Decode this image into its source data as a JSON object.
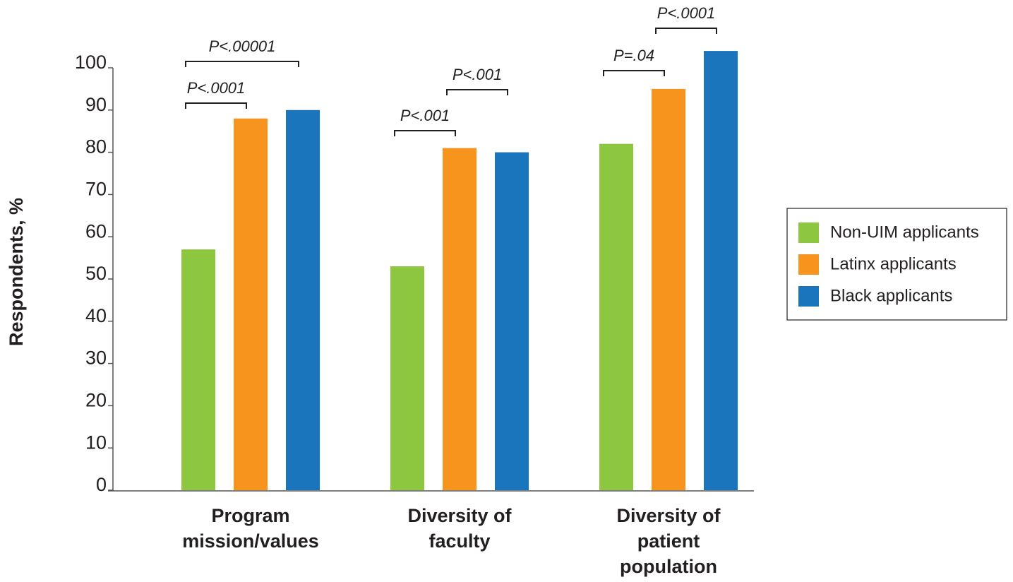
{
  "chart_data": {
    "type": "bar",
    "y_label": "Respondents, %",
    "categories": [
      "Program mission/values",
      "Diversity of faculty",
      "Diversity of patient population"
    ],
    "series": [
      {
        "name": "Non-UIM applicants",
        "color": "#8dc63f",
        "values": [
          57,
          53,
          82
        ]
      },
      {
        "name": "Latinx applicants",
        "color": "#f7941d",
        "values": [
          88,
          81,
          95
        ]
      },
      {
        "name": "Black applicants",
        "color": "#1b75bc",
        "values": [
          90,
          80,
          104
        ]
      }
    ],
    "ylim": [
      0,
      100
    ],
    "yticks": [
      0,
      10,
      20,
      30,
      40,
      50,
      60,
      70,
      80,
      90,
      100
    ],
    "annotations": [
      [
        "P<.0001",
        "P<.00001"
      ],
      [
        "P<.001",
        "P<.001"
      ],
      [
        "P=.04",
        "P<.0001"
      ]
    ],
    "legend": "right"
  }
}
